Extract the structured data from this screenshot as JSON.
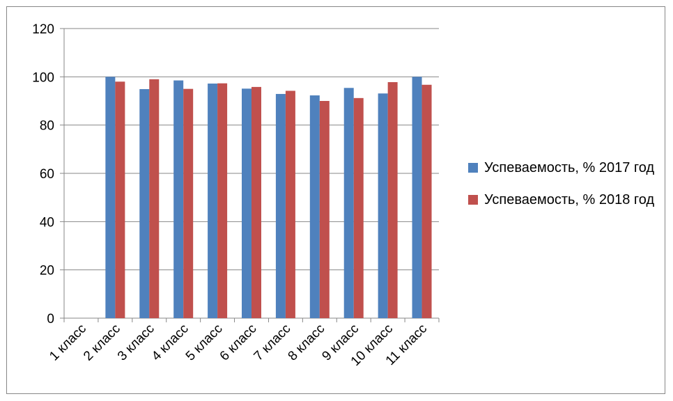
{
  "chart_data": {
    "type": "bar",
    "categories": [
      "1 класс",
      "2 класс",
      "3 класс",
      "4 класс",
      "5 класс",
      "6 класс",
      "7 класс",
      "8 класс",
      "9 класс",
      "10 класс",
      "11 класс"
    ],
    "series": [
      {
        "name": "Успеваемость, % 2017 год",
        "color": "#4F81BD",
        "values": [
          null,
          100,
          94.9,
          98.5,
          97.2,
          95.1,
          92.9,
          92.3,
          95.4,
          93.1,
          100
        ]
      },
      {
        "name": "Успеваемость, % 2018 год",
        "color": "#C0504D",
        "values": [
          null,
          98,
          99,
          95,
          97.3,
          95.8,
          94.2,
          90,
          91.2,
          97.8,
          96.7
        ]
      }
    ],
    "yticks": [
      "0",
      "20",
      "40",
      "60",
      "80",
      "100",
      "120"
    ],
    "ylim": [
      0,
      120
    ],
    "grid": true,
    "legend_position": "right"
  }
}
